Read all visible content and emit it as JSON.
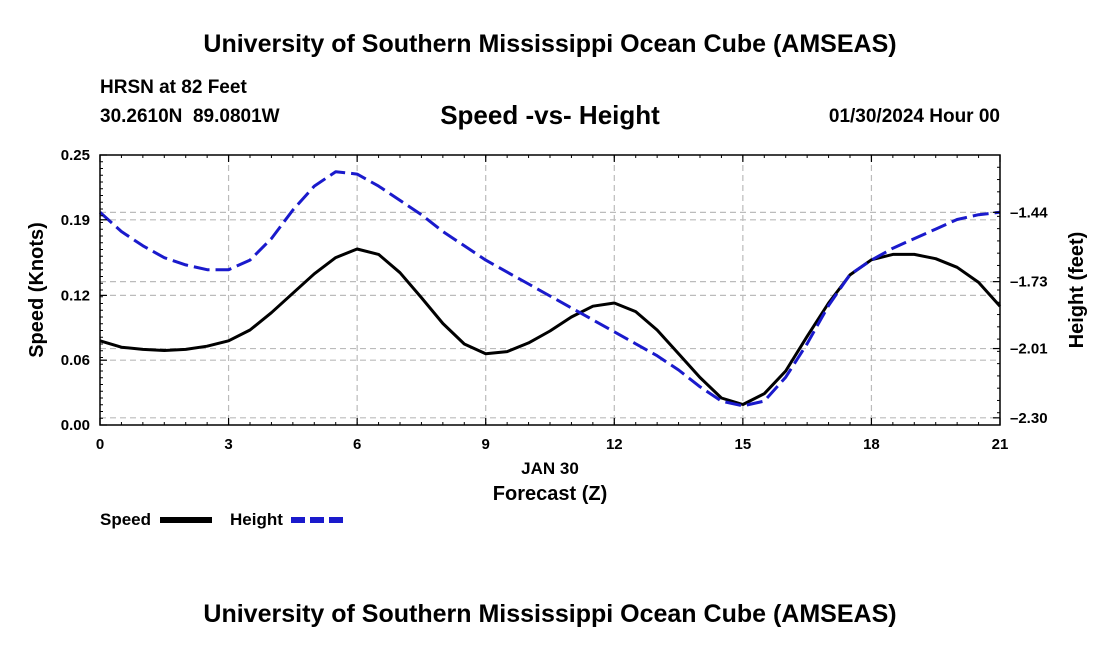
{
  "header": {
    "title": "University of Southern Mississippi Ocean Cube (AMSEAS)",
    "station": "HRSN at 82 Feet",
    "location": "30.2610N  89.0801W",
    "chart_title": "Speed -vs- Height",
    "datetime": "01/30/2024 Hour 00"
  },
  "footer": {
    "title": "University of Southern Mississippi Ocean Cube (AMSEAS)"
  },
  "legend": {
    "speed_label": "Speed",
    "height_label": "Height"
  },
  "colors": {
    "speed": "#000000",
    "height": "#1a1acc",
    "grid": "#bbbbbb"
  },
  "chart_data": {
    "type": "line",
    "title": "Speed -vs- Height",
    "xlabel": "Forecast (Z)",
    "xlabel_date": "JAN 30",
    "ylabel": "Speed (Knots)",
    "y2label": "Height (feet)",
    "xlim": [
      0,
      21
    ],
    "ylim": [
      0,
      0.25
    ],
    "y2lim": [
      -2.33,
      -1.2
    ],
    "x_ticks": [
      "0",
      "3",
      "6",
      "9",
      "12",
      "15",
      "18",
      "21"
    ],
    "y_ticks": [
      "0.00",
      "0.06",
      "0.12",
      "0.19",
      "0.25"
    ],
    "y2_ticks": [
      "-1.44",
      "-1.73",
      "-2.01",
      "-2.30"
    ],
    "grid": true,
    "legend": "bottom-left",
    "series": [
      {
        "name": "Speed",
        "axis": "left",
        "style": "solid",
        "x": [
          0,
          0.5,
          1,
          1.5,
          2,
          2.5,
          3,
          3.5,
          4,
          4.5,
          5,
          5.5,
          6,
          6.5,
          7,
          7.5,
          8,
          8.5,
          9,
          9.5,
          10,
          10.5,
          11,
          11.5,
          12,
          12.5,
          13,
          13.5,
          14,
          14.5,
          15,
          15.5,
          16,
          16.5,
          17,
          17.5,
          18,
          18.5,
          19,
          19.5,
          20,
          20.5,
          21
        ],
        "values": [
          0.078,
          0.072,
          0.07,
          0.069,
          0.07,
          0.073,
          0.078,
          0.088,
          0.104,
          0.122,
          0.14,
          0.155,
          0.163,
          0.158,
          0.141,
          0.118,
          0.094,
          0.075,
          0.066,
          0.068,
          0.076,
          0.087,
          0.1,
          0.11,
          0.113,
          0.105,
          0.088,
          0.066,
          0.044,
          0.025,
          0.019,
          0.029,
          0.05,
          0.082,
          0.113,
          0.139,
          0.153,
          0.158,
          0.158,
          0.154,
          0.146,
          0.132,
          0.11
        ]
      },
      {
        "name": "Height",
        "axis": "right",
        "style": "dashed",
        "x": [
          0,
          0.5,
          1,
          1.5,
          2,
          2.5,
          3,
          3.5,
          4,
          4.5,
          5,
          5.5,
          6,
          6.5,
          7,
          7.5,
          8,
          8.5,
          9,
          9.5,
          10,
          10.5,
          11,
          11.5,
          12,
          12.5,
          13,
          13.5,
          14,
          14.5,
          15,
          15.5,
          16,
          16.5,
          17,
          17.5,
          18,
          18.5,
          19,
          19.5,
          20,
          20.5,
          21
        ],
        "values": [
          -1.44,
          -1.52,
          -1.58,
          -1.63,
          -1.66,
          -1.68,
          -1.68,
          -1.64,
          -1.55,
          -1.43,
          -1.33,
          -1.27,
          -1.28,
          -1.33,
          -1.39,
          -1.45,
          -1.52,
          -1.58,
          -1.64,
          -1.69,
          -1.74,
          -1.79,
          -1.84,
          -1.89,
          -1.94,
          -1.99,
          -2.04,
          -2.1,
          -2.17,
          -2.23,
          -2.25,
          -2.23,
          -2.13,
          -1.99,
          -1.83,
          -1.7,
          -1.64,
          -1.59,
          -1.55,
          -1.51,
          -1.47,
          -1.45,
          -1.44
        ]
      }
    ]
  }
}
